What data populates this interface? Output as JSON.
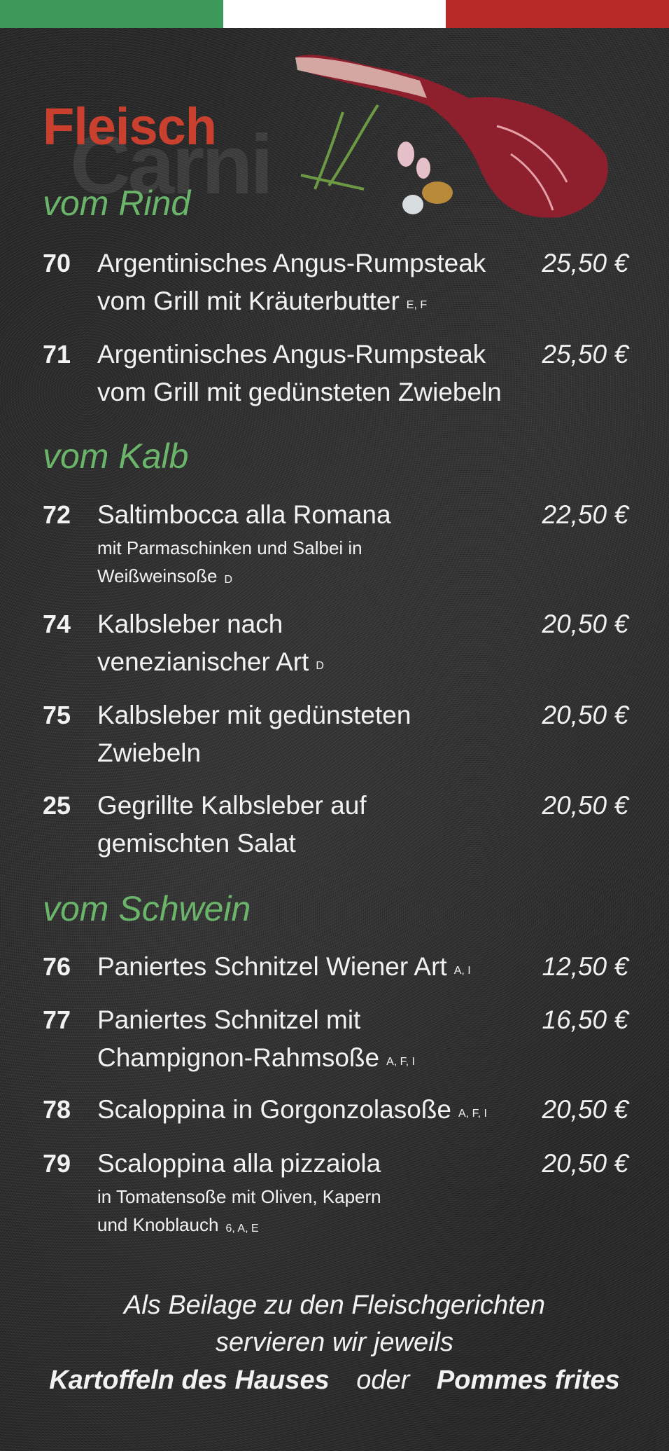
{
  "colors": {
    "flag": [
      "#3e9a5a",
      "#ffffff",
      "#b82a25"
    ],
    "title": "#c9402e",
    "section": "#6bb56a",
    "text": "#f2f2f2"
  },
  "title": "Fleisch",
  "watermark": "Carni",
  "sections": [
    {
      "label": "vom Rind",
      "items": [
        {
          "number": "70",
          "lines": [
            "Argentinisches Angus-Rumpsteak",
            "vom Grill mit Kräuterbutter"
          ],
          "allergens": "E, F",
          "desc": [],
          "price": "25,50 €"
        },
        {
          "number": "71",
          "lines": [
            "Argentinisches Angus-Rumpsteak",
            "vom Grill mit gedünsteten Zwiebeln"
          ],
          "allergens": "",
          "desc": [],
          "price": "25,50 €"
        }
      ]
    },
    {
      "label": "vom Kalb",
      "items": [
        {
          "number": "72",
          "lines": [
            "Saltimbocca alla Romana"
          ],
          "allergens": "D",
          "desc": [
            "mit Parmaschinken und Salbei in",
            "Weißweinsoße"
          ],
          "price": "22,50 €"
        },
        {
          "number": "74",
          "lines": [
            "Kalbsleber nach",
            "venezianischer Art"
          ],
          "allergens": "D",
          "desc": [],
          "price": "20,50 €"
        },
        {
          "number": "75",
          "lines": [
            "Kalbsleber mit gedünsteten",
            "Zwiebeln"
          ],
          "allergens": "",
          "desc": [],
          "price": "20,50 €"
        },
        {
          "number": "25",
          "lines": [
            "Gegrillte Kalbsleber auf",
            "gemischten Salat"
          ],
          "allergens": "",
          "desc": [],
          "price": "20,50 €"
        }
      ]
    },
    {
      "label": "vom Schwein",
      "items": [
        {
          "number": "76",
          "lines": [
            "Paniertes Schnitzel Wiener Art"
          ],
          "allergens": "A, I",
          "desc": [],
          "price": "12,50 €"
        },
        {
          "number": "77",
          "lines": [
            "Paniertes Schnitzel mit",
            "Champignon-Rahmsoße"
          ],
          "allergens": "A, F, I",
          "desc": [],
          "price": "16,50 €"
        },
        {
          "number": "78",
          "lines": [
            "Scaloppina in Gorgonzolasoße"
          ],
          "allergens": "A, F, I",
          "desc": [],
          "price": "20,50 €"
        },
        {
          "number": "79",
          "lines": [
            "Scaloppina alla pizzaiola"
          ],
          "allergens": "6, A, E",
          "desc": [
            "in Tomatensoße mit Oliven, Kapern",
            "und Knoblauch"
          ],
          "price": "20,50 €"
        }
      ]
    }
  ],
  "footer": {
    "line1": "Als Beilage zu den Fleischgerichten",
    "line2": "servieren wir jeweils",
    "option1": "Kartoffeln des Hauses",
    "or": "oder",
    "option2": "Pommes frites"
  }
}
